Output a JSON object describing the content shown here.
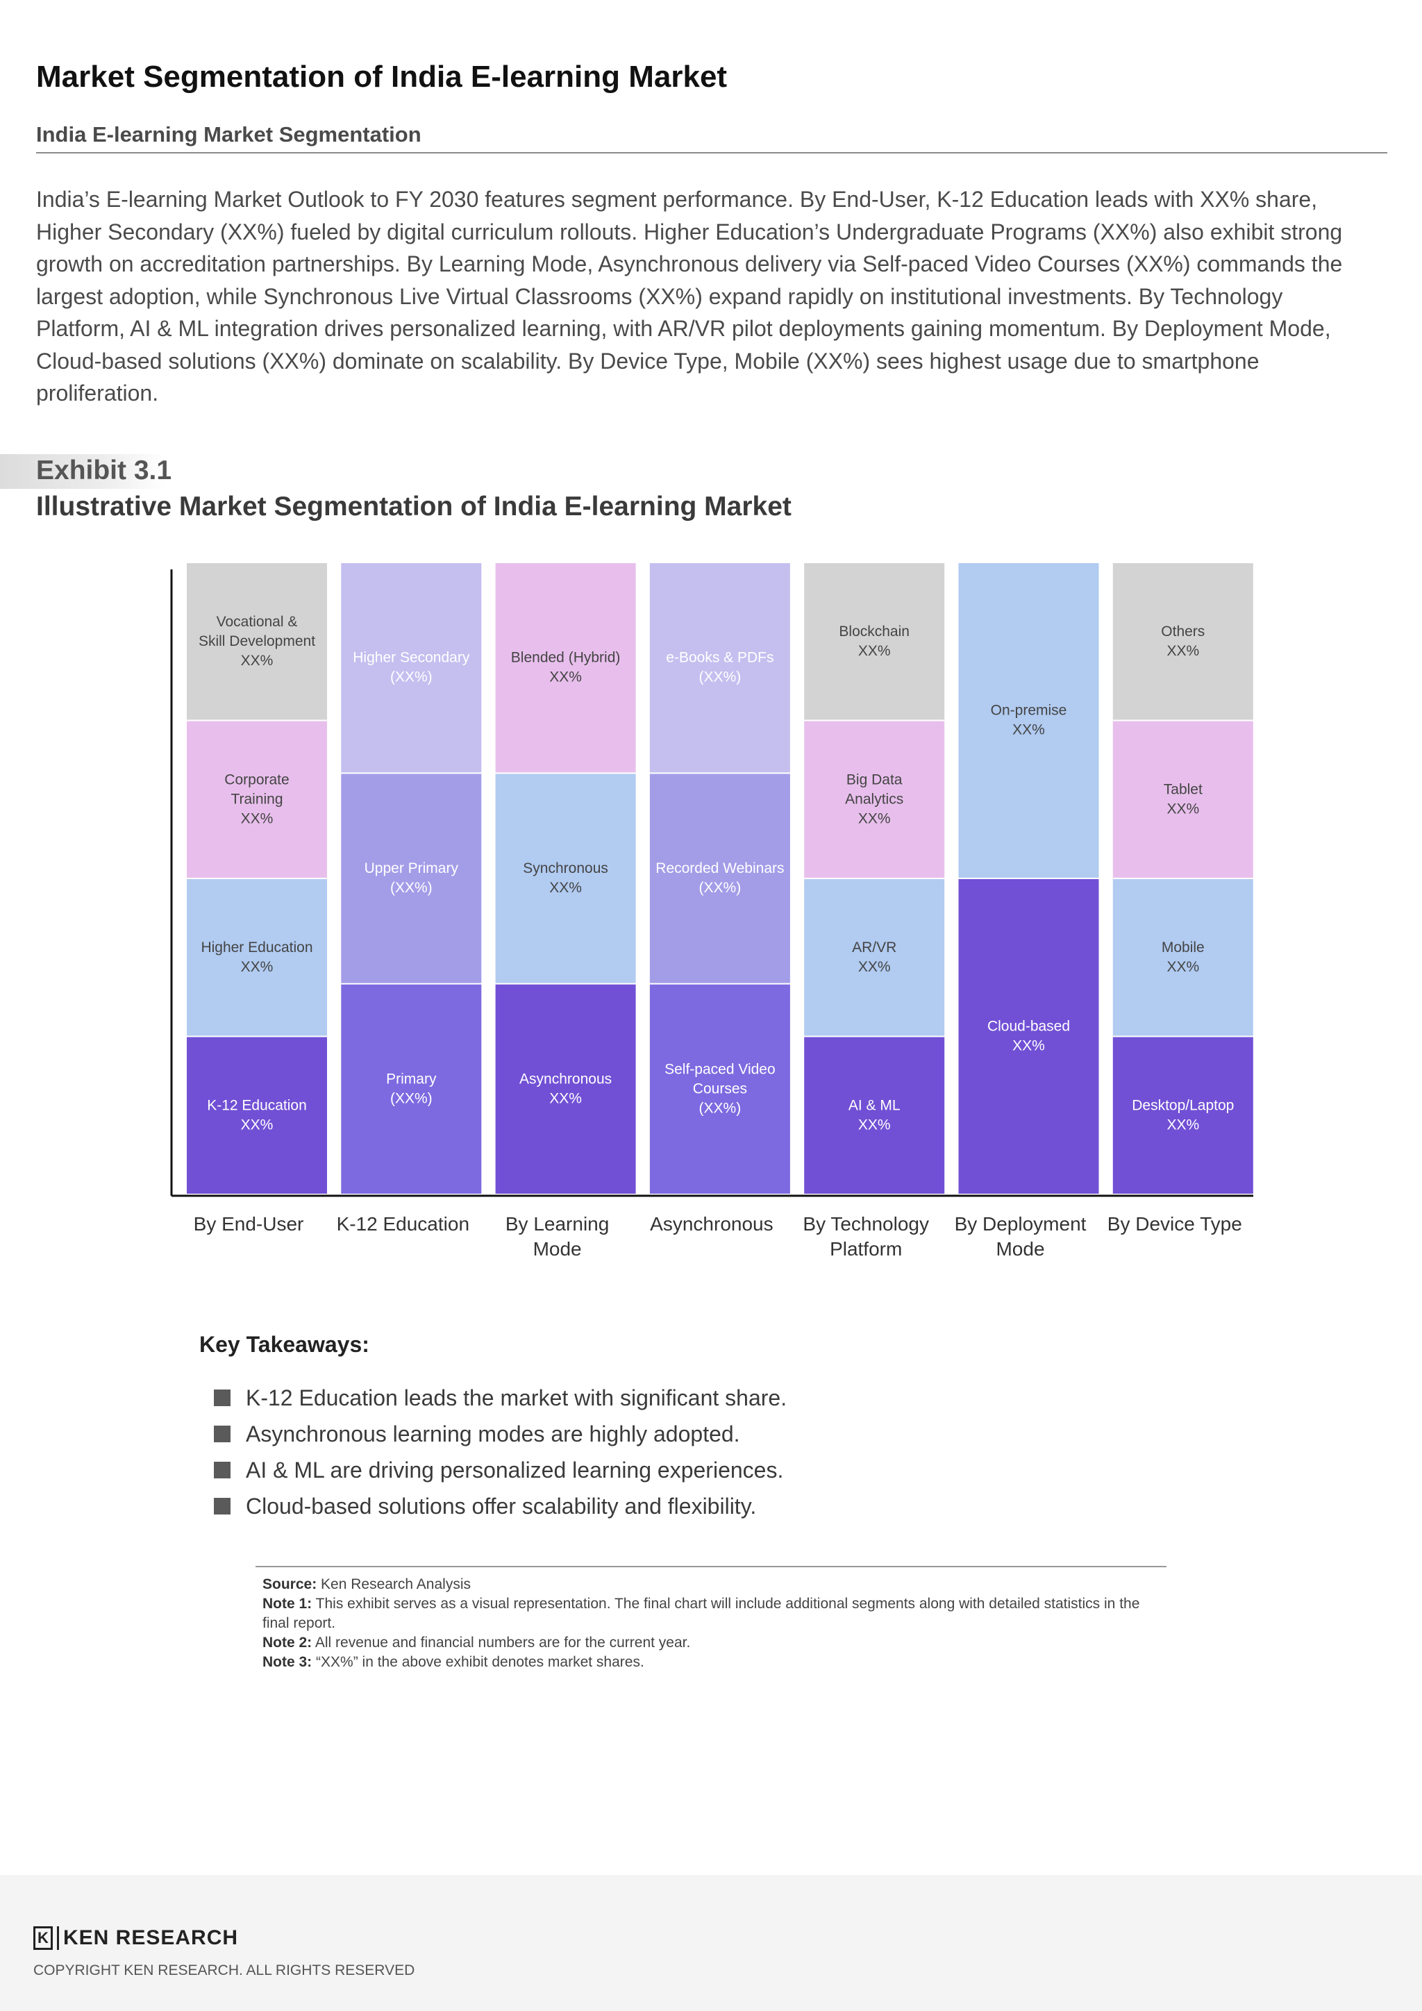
{
  "header": {
    "title": "Market Segmentation of India E-learning Market",
    "subtitle": "India E-learning Market Segmentation"
  },
  "intro": "India’s E-learning Market Outlook to FY 2030 features segment performance. By End-User, K-12 Education leads with XX% share, Higher Secondary (XX%) fueled by digital curriculum rollouts. Higher Education’s Undergraduate Programs (XX%) also exhibit strong growth on accreditation partnerships. By Learning Mode, Asynchronous delivery via Self-paced Video Courses (XX%) commands the largest adoption, while Synchronous Live Virtual Classrooms (XX%) expand rapidly on institutional investments. By Technology Platform, AI & ML integration drives personalized learning, with AR/VR pilot deployments gaining momentum. By Deployment Mode, Cloud-based solutions (XX%) dominate on scalability. By Device Type, Mobile (XX%) sees highest usage due to smartphone proliferation.",
  "exhibit": {
    "label": "Exhibit 3.1",
    "title": "Illustrative Market Segmentation of India E-learning Market"
  },
  "colors": {
    "grey": "#d3d3d3",
    "pink": "#e8bfec",
    "lightblue": "#b1cbf1",
    "purple": "#7150d5",
    "lavender": "#c4bfef",
    "midviolet": "#a39de8",
    "violet": "#7d6ae0"
  },
  "chart_data": {
    "type": "bar",
    "subtype": "stacked-100-percent",
    "note": "Illustrative segmentation; all shares shown as XX% placeholders, segment heights are illustrative.",
    "categories": [
      "By End-User",
      "K-12 Education",
      "By Learning Mode",
      "Asynchronous",
      "By Technology Platform",
      "By Deployment Mode",
      "By Device Type"
    ],
    "stacks": [
      {
        "category": "By End-User",
        "segments": [
          {
            "label": "K-12 Education",
            "value_text": "XX%",
            "share": 25,
            "color": "purple",
            "text_color": "#ffffff"
          },
          {
            "label": "Higher Education",
            "value_text": "XX%",
            "share": 25,
            "color": "lightblue",
            "text_color": "#444444"
          },
          {
            "label": "Corporate Training",
            "value_text": "XX%",
            "share": 25,
            "color": "pink",
            "text_color": "#444444"
          },
          {
            "label": "Vocational & Skill Development",
            "value_text": "XX%",
            "share": 25,
            "color": "grey",
            "text_color": "#444444"
          }
        ]
      },
      {
        "category": "K-12 Education",
        "segments": [
          {
            "label": "Primary",
            "value_text": "(XX%)",
            "share": 33.33,
            "color": "violet",
            "text_color": "#ffffff"
          },
          {
            "label": "Upper Primary",
            "value_text": "(XX%)",
            "share": 33.33,
            "color": "midviolet",
            "text_color": "#ffffff"
          },
          {
            "label": "Higher Secondary",
            "value_text": "(XX%)",
            "share": 33.34,
            "color": "lavender",
            "text_color": "#ffffff"
          }
        ]
      },
      {
        "category": "By Learning Mode",
        "segments": [
          {
            "label": "Asynchronous",
            "value_text": "XX%",
            "share": 33.33,
            "color": "purple",
            "text_color": "#ffffff"
          },
          {
            "label": "Synchronous",
            "value_text": "XX%",
            "share": 33.33,
            "color": "lightblue",
            "text_color": "#444444"
          },
          {
            "label": "Blended (Hybrid)",
            "value_text": "XX%",
            "share": 33.34,
            "color": "pink",
            "text_color": "#444444"
          }
        ]
      },
      {
        "category": "Asynchronous",
        "segments": [
          {
            "label": "Self-paced Video Courses",
            "value_text": "(XX%)",
            "share": 33.33,
            "color": "violet",
            "text_color": "#ffffff"
          },
          {
            "label": "Recorded Webinars",
            "value_text": "(XX%)",
            "share": 33.33,
            "color": "midviolet",
            "text_color": "#ffffff"
          },
          {
            "label": "e-Books & PDFs",
            "value_text": "(XX%)",
            "share": 33.34,
            "color": "lavender",
            "text_color": "#ffffff"
          }
        ]
      },
      {
        "category": "By Technology Platform",
        "segments": [
          {
            "label": "AI & ML",
            "value_text": "XX%",
            "share": 25,
            "color": "purple",
            "text_color": "#ffffff"
          },
          {
            "label": "AR/VR",
            "value_text": "XX%",
            "share": 25,
            "color": "lightblue",
            "text_color": "#444444"
          },
          {
            "label": "Big Data Analytics",
            "value_text": "XX%",
            "share": 25,
            "color": "pink",
            "text_color": "#444444"
          },
          {
            "label": "Blockchain",
            "value_text": "XX%",
            "share": 25,
            "color": "grey",
            "text_color": "#444444"
          }
        ]
      },
      {
        "category": "By Deployment Mode",
        "segments": [
          {
            "label": "Cloud-based",
            "value_text": "XX%",
            "share": 50,
            "color": "purple",
            "text_color": "#ffffff"
          },
          {
            "label": "On-premise",
            "value_text": "XX%",
            "share": 50,
            "color": "lightblue",
            "text_color": "#444444"
          }
        ]
      },
      {
        "category": "By Device Type",
        "segments": [
          {
            "label": "Desktop/Laptop",
            "value_text": "XX%",
            "share": 25,
            "color": "purple",
            "text_color": "#ffffff"
          },
          {
            "label": "Mobile",
            "value_text": "XX%",
            "share": 25,
            "color": "lightblue",
            "text_color": "#444444"
          },
          {
            "label": "Tablet",
            "value_text": "XX%",
            "share": 25,
            "color": "pink",
            "text_color": "#444444"
          },
          {
            "label": "Others",
            "value_text": "XX%",
            "share": 25,
            "color": "grey",
            "text_color": "#444444"
          }
        ]
      }
    ],
    "ylim": [
      0,
      100
    ],
    "grid": false,
    "legend": "none"
  },
  "takeaways": {
    "title": "Key Takeaways:",
    "items": [
      "K-12 Education leads the market with significant share.",
      "Asynchronous learning modes are highly adopted.",
      "AI & ML are driving personalized learning experiences.",
      "Cloud-based solutions offer scalability and flexibility."
    ]
  },
  "notes": {
    "source_label": "Source:",
    "source": "Ken Research Analysis",
    "note1_label": "Note 1:",
    "note1": "This exhibit serves as a visual representation. The final chart will include additional segments along with detailed statistics in the final report.",
    "note2_label": "Note 2:",
    "note2": "All revenue and financial numbers are for the current year.",
    "note3_label": "Note 3:",
    "note3": "“XX%” in the above exhibit denotes market shares."
  },
  "footer": {
    "logo_mark": "K",
    "logo_text": "KEN RESEARCH",
    "copyright": "COPYRIGHT KEN RESEARCH. ALL RIGHTS RESERVED"
  }
}
